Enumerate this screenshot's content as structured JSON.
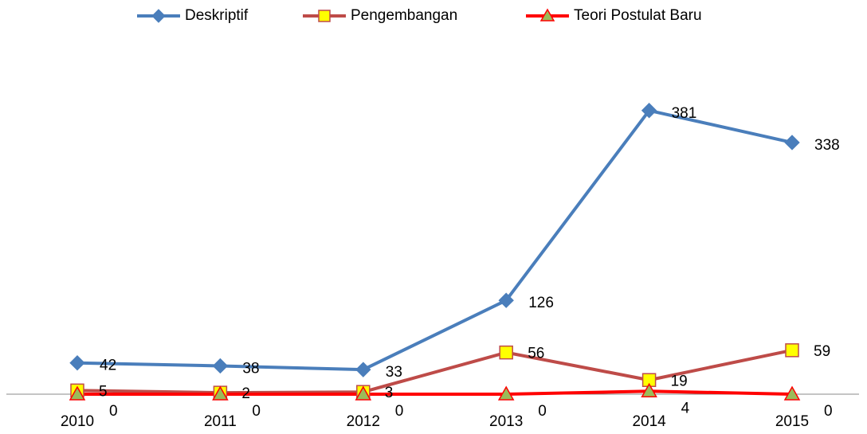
{
  "chart_data": {
    "type": "line",
    "categories": [
      "2010",
      "2011",
      "2012",
      "2013",
      "2014",
      "2015"
    ],
    "series": [
      {
        "name": "Deskriptif",
        "color": "#4a7ebb",
        "marker": "diamond",
        "values": [
          42,
          38,
          33,
          126,
          381,
          338
        ]
      },
      {
        "name": "Pengembangan",
        "color": "#be4b48",
        "marker": "square",
        "values": [
          5,
          2,
          3,
          56,
          19,
          59
        ]
      },
      {
        "name": "Teori Postulat Baru",
        "color": "#ff0000",
        "marker": "triangle",
        "values": [
          0,
          0,
          0,
          0,
          4,
          0
        ]
      }
    ],
    "ylim": [
      0,
      400
    ],
    "legend": "top"
  }
}
